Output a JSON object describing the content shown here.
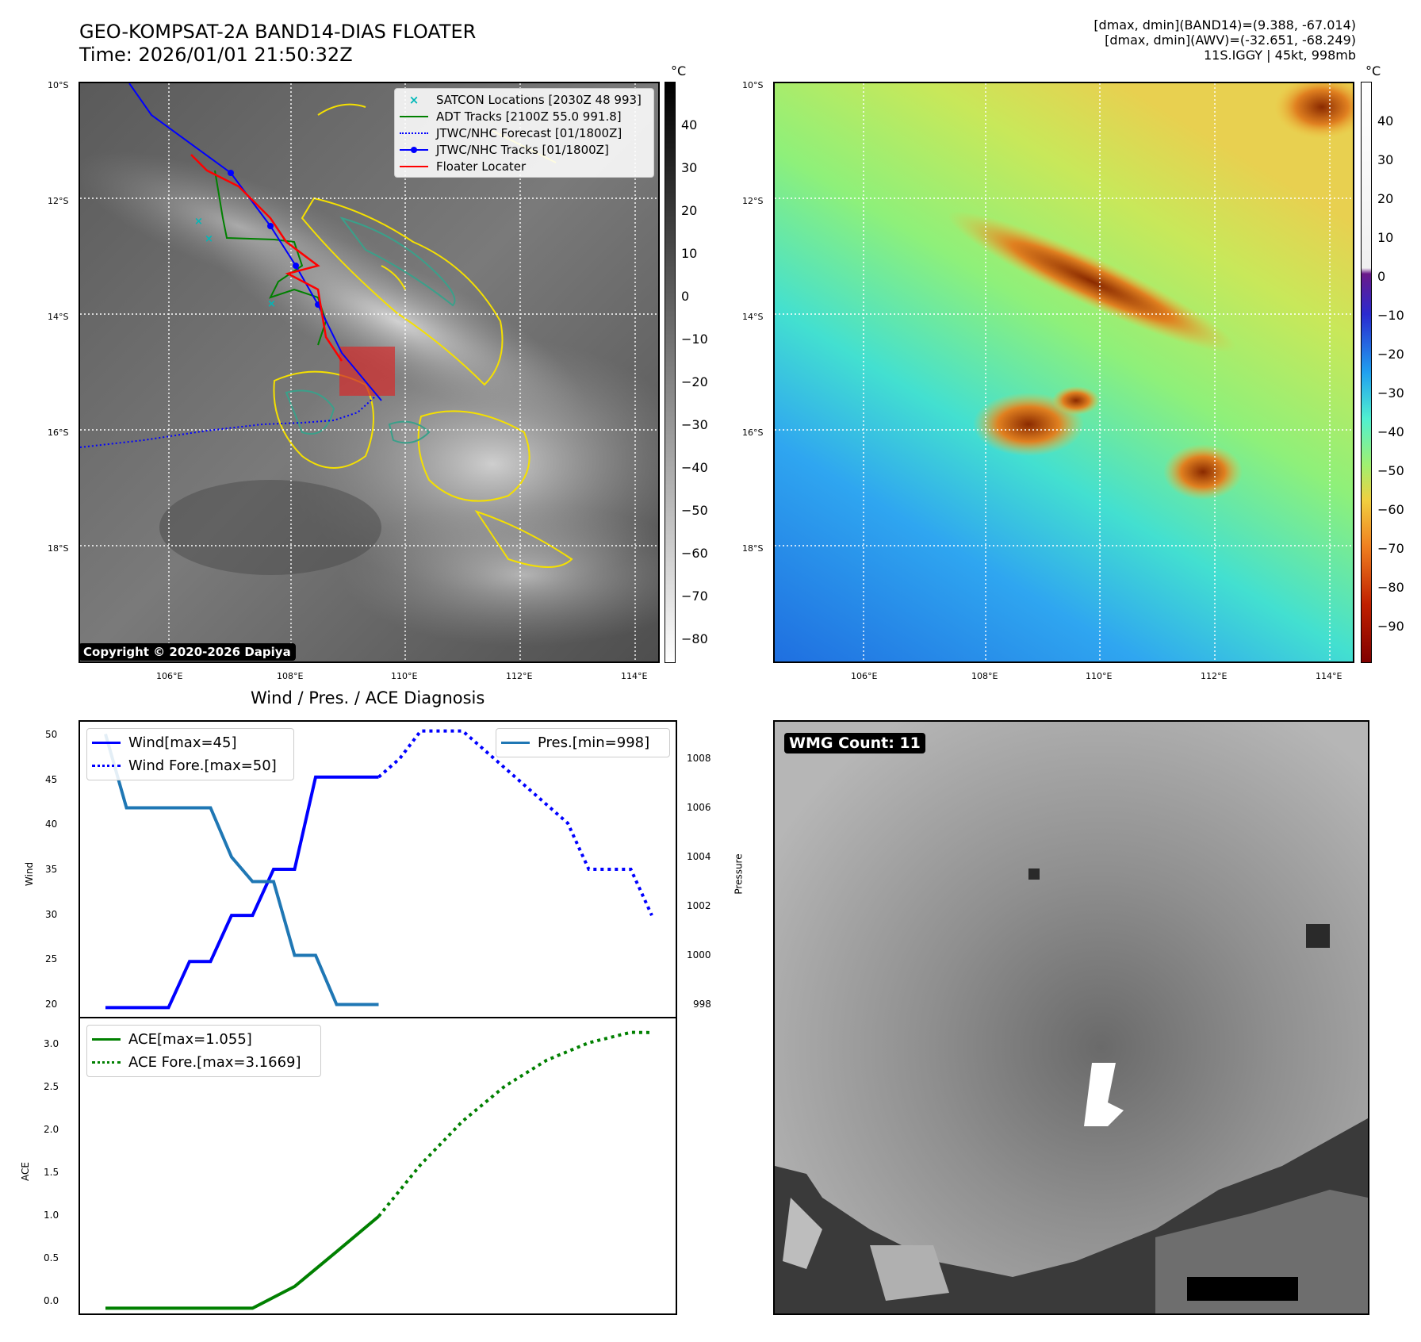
{
  "header": {
    "title_line1": "GEO-KOMPSAT-2A BAND14-DIAS FLOATER",
    "title_line2": "Time: 2026/01/01 21:50:32Z",
    "stat_line1": "[dmax, dmin](BAND14)=(9.388, -67.014)",
    "stat_line2": "[dmax, dmin](AWV)=(-32.651, -68.249)",
    "stat_line3": "11S.IGGY | 45kt, 998mb"
  },
  "map_axes": {
    "lat_labels": [
      "10°S",
      "12°S",
      "14°S",
      "16°S",
      "18°S"
    ],
    "lon_labels": [
      "106°E",
      "108°E",
      "110°E",
      "112°E",
      "114°E"
    ]
  },
  "ir_panel": {
    "copyright": "Copyright © 2020-2026 Dapiya",
    "colorbar_unit": "°C",
    "colorbar_ticks": [
      "40",
      "30",
      "20",
      "10",
      "0",
      "−10",
      "−20",
      "−30",
      "−40",
      "−50",
      "−60",
      "−70",
      "−80"
    ],
    "legend": [
      {
        "label": "SATCON Locations [2030Z 48 993]",
        "color": "#00b8b8",
        "style": "x"
      },
      {
        "label": "ADT Tracks [2100Z 55.0 991.8]",
        "color": "#008000",
        "style": "line"
      },
      {
        "label": "JTWC/NHC Forecast [01/1800Z]",
        "color": "#0000ff",
        "style": "dotted"
      },
      {
        "label": "JTWC/NHC Tracks [01/1800Z]",
        "color": "#0000ff",
        "style": "line-marker"
      },
      {
        "label": "Floater Locater",
        "color": "#ff0000",
        "style": "line"
      }
    ]
  },
  "awv_panel": {
    "colorbar_unit": "°C",
    "colorbar_ticks": [
      "40",
      "30",
      "20",
      "10",
      "0",
      "−10",
      "−20",
      "−30",
      "−40",
      "−50",
      "−60",
      "−70",
      "−80",
      "−90"
    ]
  },
  "wmg_panel": {
    "badge": "WMG Count: 11"
  },
  "chart_data": [
    {
      "type": "line",
      "title": "Wind / Pres. / ACE Diagnosis",
      "ylabel": "Wind",
      "ylabel2": "Pressure",
      "ylim": [
        19,
        51
      ],
      "ylim2": [
        997.5,
        1009.5
      ],
      "yticks": [
        "20",
        "25",
        "30",
        "35",
        "40",
        "45",
        "50"
      ],
      "yticks2": [
        "998",
        "1000",
        "1002",
        "1004",
        "1006",
        "1008"
      ],
      "series": [
        {
          "name": "Wind[max=45]",
          "color": "#0000ff",
          "dash": "solid",
          "x": [
            0,
            1,
            2,
            3,
            4,
            5,
            6,
            7,
            8,
            9,
            10,
            11,
            12,
            13
          ],
          "values": [
            20,
            20,
            20,
            20,
            25,
            25,
            30,
            30,
            35,
            35,
            45,
            45,
            45,
            45
          ]
        },
        {
          "name": "Wind Fore.[max=50]",
          "color": "#0000ff",
          "dash": "dotted",
          "x": [
            13,
            14,
            15,
            16,
            17,
            18,
            19,
            20,
            21,
            22,
            23,
            24,
            25,
            26
          ],
          "values": [
            45,
            47,
            50,
            50,
            50,
            48,
            46,
            44,
            42,
            40,
            35,
            35,
            35,
            30
          ]
        },
        {
          "name": "Pres.[min=998]",
          "color": "#1f77b4",
          "dash": "solid",
          "axis": "right",
          "x": [
            0,
            1,
            2,
            3,
            4,
            5,
            6,
            7,
            8,
            9,
            10,
            11,
            12,
            13
          ],
          "values": [
            1009,
            1006,
            1006,
            1006,
            1006,
            1006,
            1004,
            1003,
            1003,
            1000,
            1000,
            998,
            998,
            998
          ]
        }
      ]
    },
    {
      "type": "line",
      "ylabel": "ACE",
      "ylim": [
        -0.06,
        3.33
      ],
      "yticks": [
        "0.0",
        "0.5",
        "1.0",
        "1.5",
        "2.0",
        "2.5",
        "3.0"
      ],
      "series": [
        {
          "name": "ACE[max=1.055]",
          "color": "#008000",
          "dash": "solid",
          "x": [
            0,
            7,
            9,
            11,
            13
          ],
          "values": [
            0,
            0,
            0.25,
            0.65,
            1.055
          ]
        },
        {
          "name": "ACE Fore.[max=3.1669]",
          "color": "#008000",
          "dash": "dotted",
          "x": [
            13,
            15,
            17,
            19,
            21,
            23,
            25,
            26
          ],
          "values": [
            1.055,
            1.65,
            2.15,
            2.55,
            2.85,
            3.05,
            3.17,
            3.1669
          ]
        }
      ]
    }
  ]
}
